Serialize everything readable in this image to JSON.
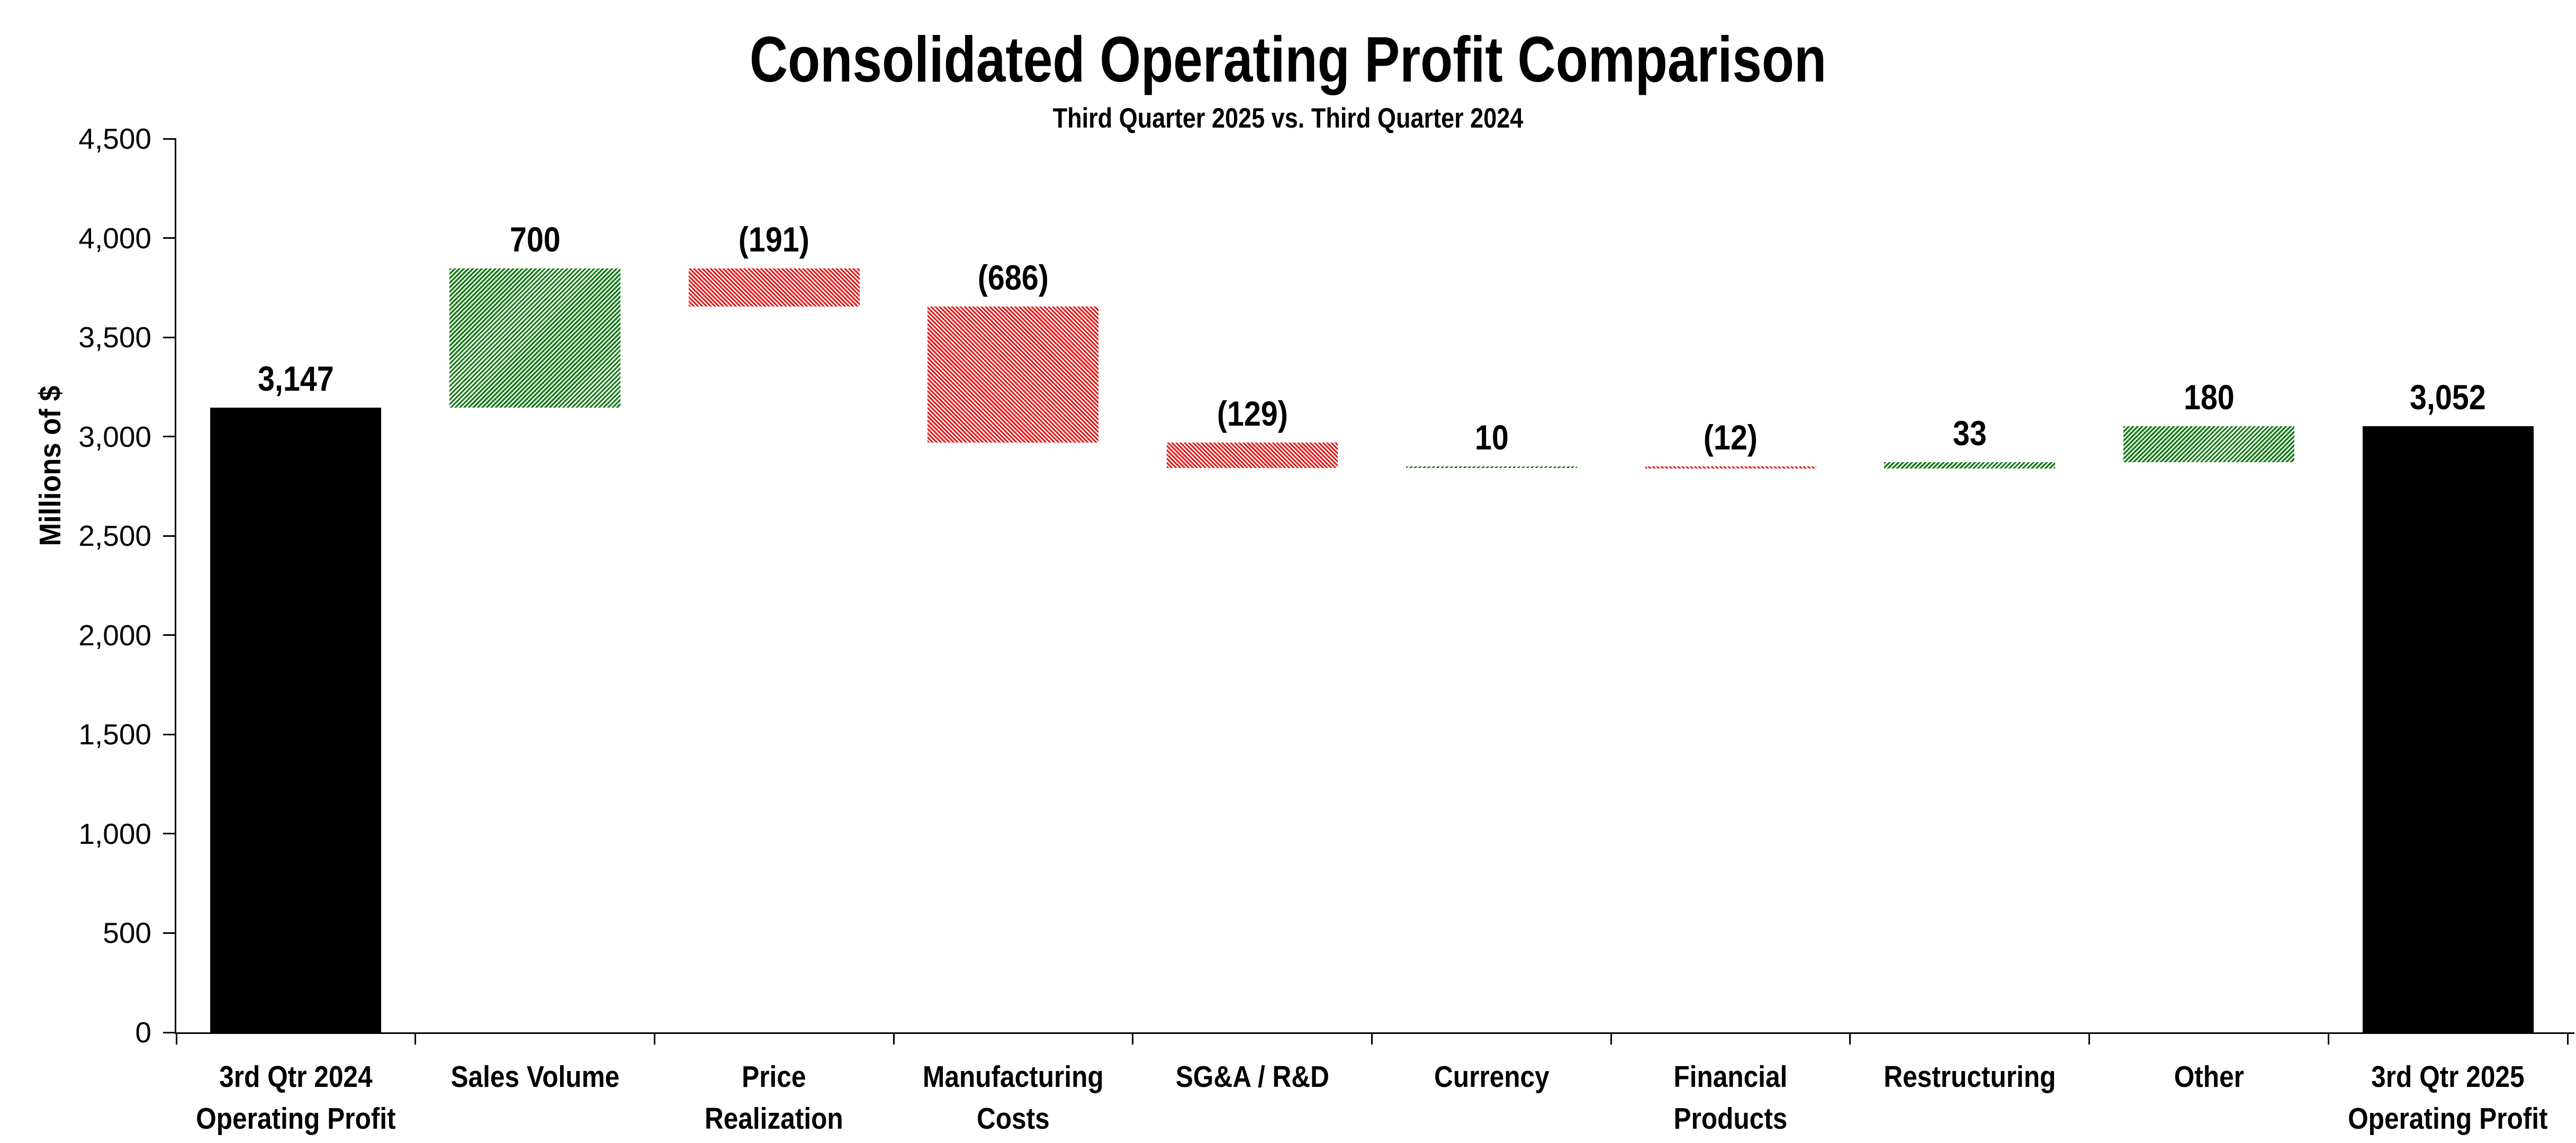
{
  "chart_data": {
    "type": "bar",
    "subtype": "waterfall",
    "title": "Consolidated Operating Profit Comparison",
    "subtitle": "Third Quarter 2025 vs. Third Quarter 2024",
    "ylabel": "Millions of $",
    "xlabel": "",
    "ylim": [
      0,
      4500
    ],
    "ytick_step": 500,
    "ytick_labels": [
      "0",
      "500",
      "1,000",
      "1,500",
      "2,000",
      "2,500",
      "3,000",
      "3,500",
      "4,000",
      "4,500"
    ],
    "grid": "off",
    "legend": "none",
    "categories": [
      "3rd Qtr 2024\nOperating Profit",
      "Sales Volume",
      "Price Realization",
      "Manufacturing\nCosts",
      "SG&A / R&D",
      "Currency",
      "Financial\nProducts",
      "Restructuring",
      "Other",
      "3rd Qtr 2025\nOperating Profit"
    ],
    "bars": [
      {
        "label": "3,147",
        "change": 3147,
        "base": 0,
        "top": 3147,
        "kind": "total"
      },
      {
        "label": "700",
        "change": 700,
        "base": 3147,
        "top": 3847,
        "kind": "increase"
      },
      {
        "label": "(191)",
        "change": -191,
        "base": 3656,
        "top": 3847,
        "kind": "decrease"
      },
      {
        "label": "(686)",
        "change": -686,
        "base": 2970,
        "top": 3656,
        "kind": "decrease"
      },
      {
        "label": "(129)",
        "change": -129,
        "base": 2841,
        "top": 2970,
        "kind": "decrease"
      },
      {
        "label": "10",
        "change": 10,
        "base": 2841,
        "top": 2851,
        "kind": "increase"
      },
      {
        "label": "(12)",
        "change": -12,
        "base": 2839,
        "top": 2851,
        "kind": "decrease"
      },
      {
        "label": "33",
        "change": 33,
        "base": 2839,
        "top": 2872,
        "kind": "increase"
      },
      {
        "label": "180",
        "change": 180,
        "base": 2872,
        "top": 3052,
        "kind": "increase"
      },
      {
        "label": "3,052",
        "change": 3052,
        "base": 0,
        "top": 3052,
        "kind": "total"
      }
    ],
    "colors": {
      "total": "#000000",
      "increase": "#1a7c1a",
      "decrease": "#e41c1c",
      "background": "#ffffff",
      "axis": "#000000",
      "text": "#000000"
    },
    "hatch": {
      "increase": "diagonal-forward",
      "decrease": "diagonal-backward",
      "total": "solid"
    }
  }
}
